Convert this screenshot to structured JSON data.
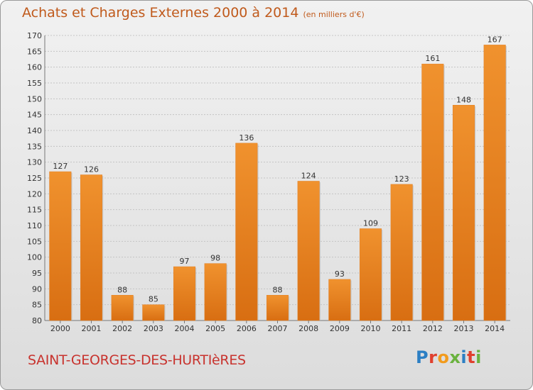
{
  "header": {
    "title": "Achats et Charges Externes 2000 à 2014",
    "subtitle": "(en milliers d'€)"
  },
  "footer": {
    "commune": "SAINT-GEORGES-DES-HURTIèRES",
    "logo_letters": [
      {
        "char": "P",
        "color": "#2c7fc4"
      },
      {
        "char": "r",
        "color": "#e0402e"
      },
      {
        "char": "o",
        "color": "#f29b1d"
      },
      {
        "char": "x",
        "color": "#6ab23e"
      },
      {
        "char": "i",
        "color": "#2c7fc4"
      },
      {
        "char": "t",
        "color": "#e0402e"
      },
      {
        "char": "i",
        "color": "#6ab23e"
      }
    ]
  },
  "chart_data": {
    "type": "bar",
    "categories": [
      "2000",
      "2001",
      "2002",
      "2003",
      "2004",
      "2005",
      "2006",
      "2007",
      "2008",
      "2009",
      "2010",
      "2011",
      "2012",
      "2013",
      "2014"
    ],
    "values": [
      127,
      126,
      88,
      85,
      97,
      98,
      136,
      88,
      124,
      93,
      109,
      123,
      161,
      148,
      167
    ],
    "ylim": [
      80,
      170
    ],
    "ytick_step": 5,
    "grid": true,
    "bar_color": "#f0922e",
    "bar_color_dark": "#d86e12"
  }
}
